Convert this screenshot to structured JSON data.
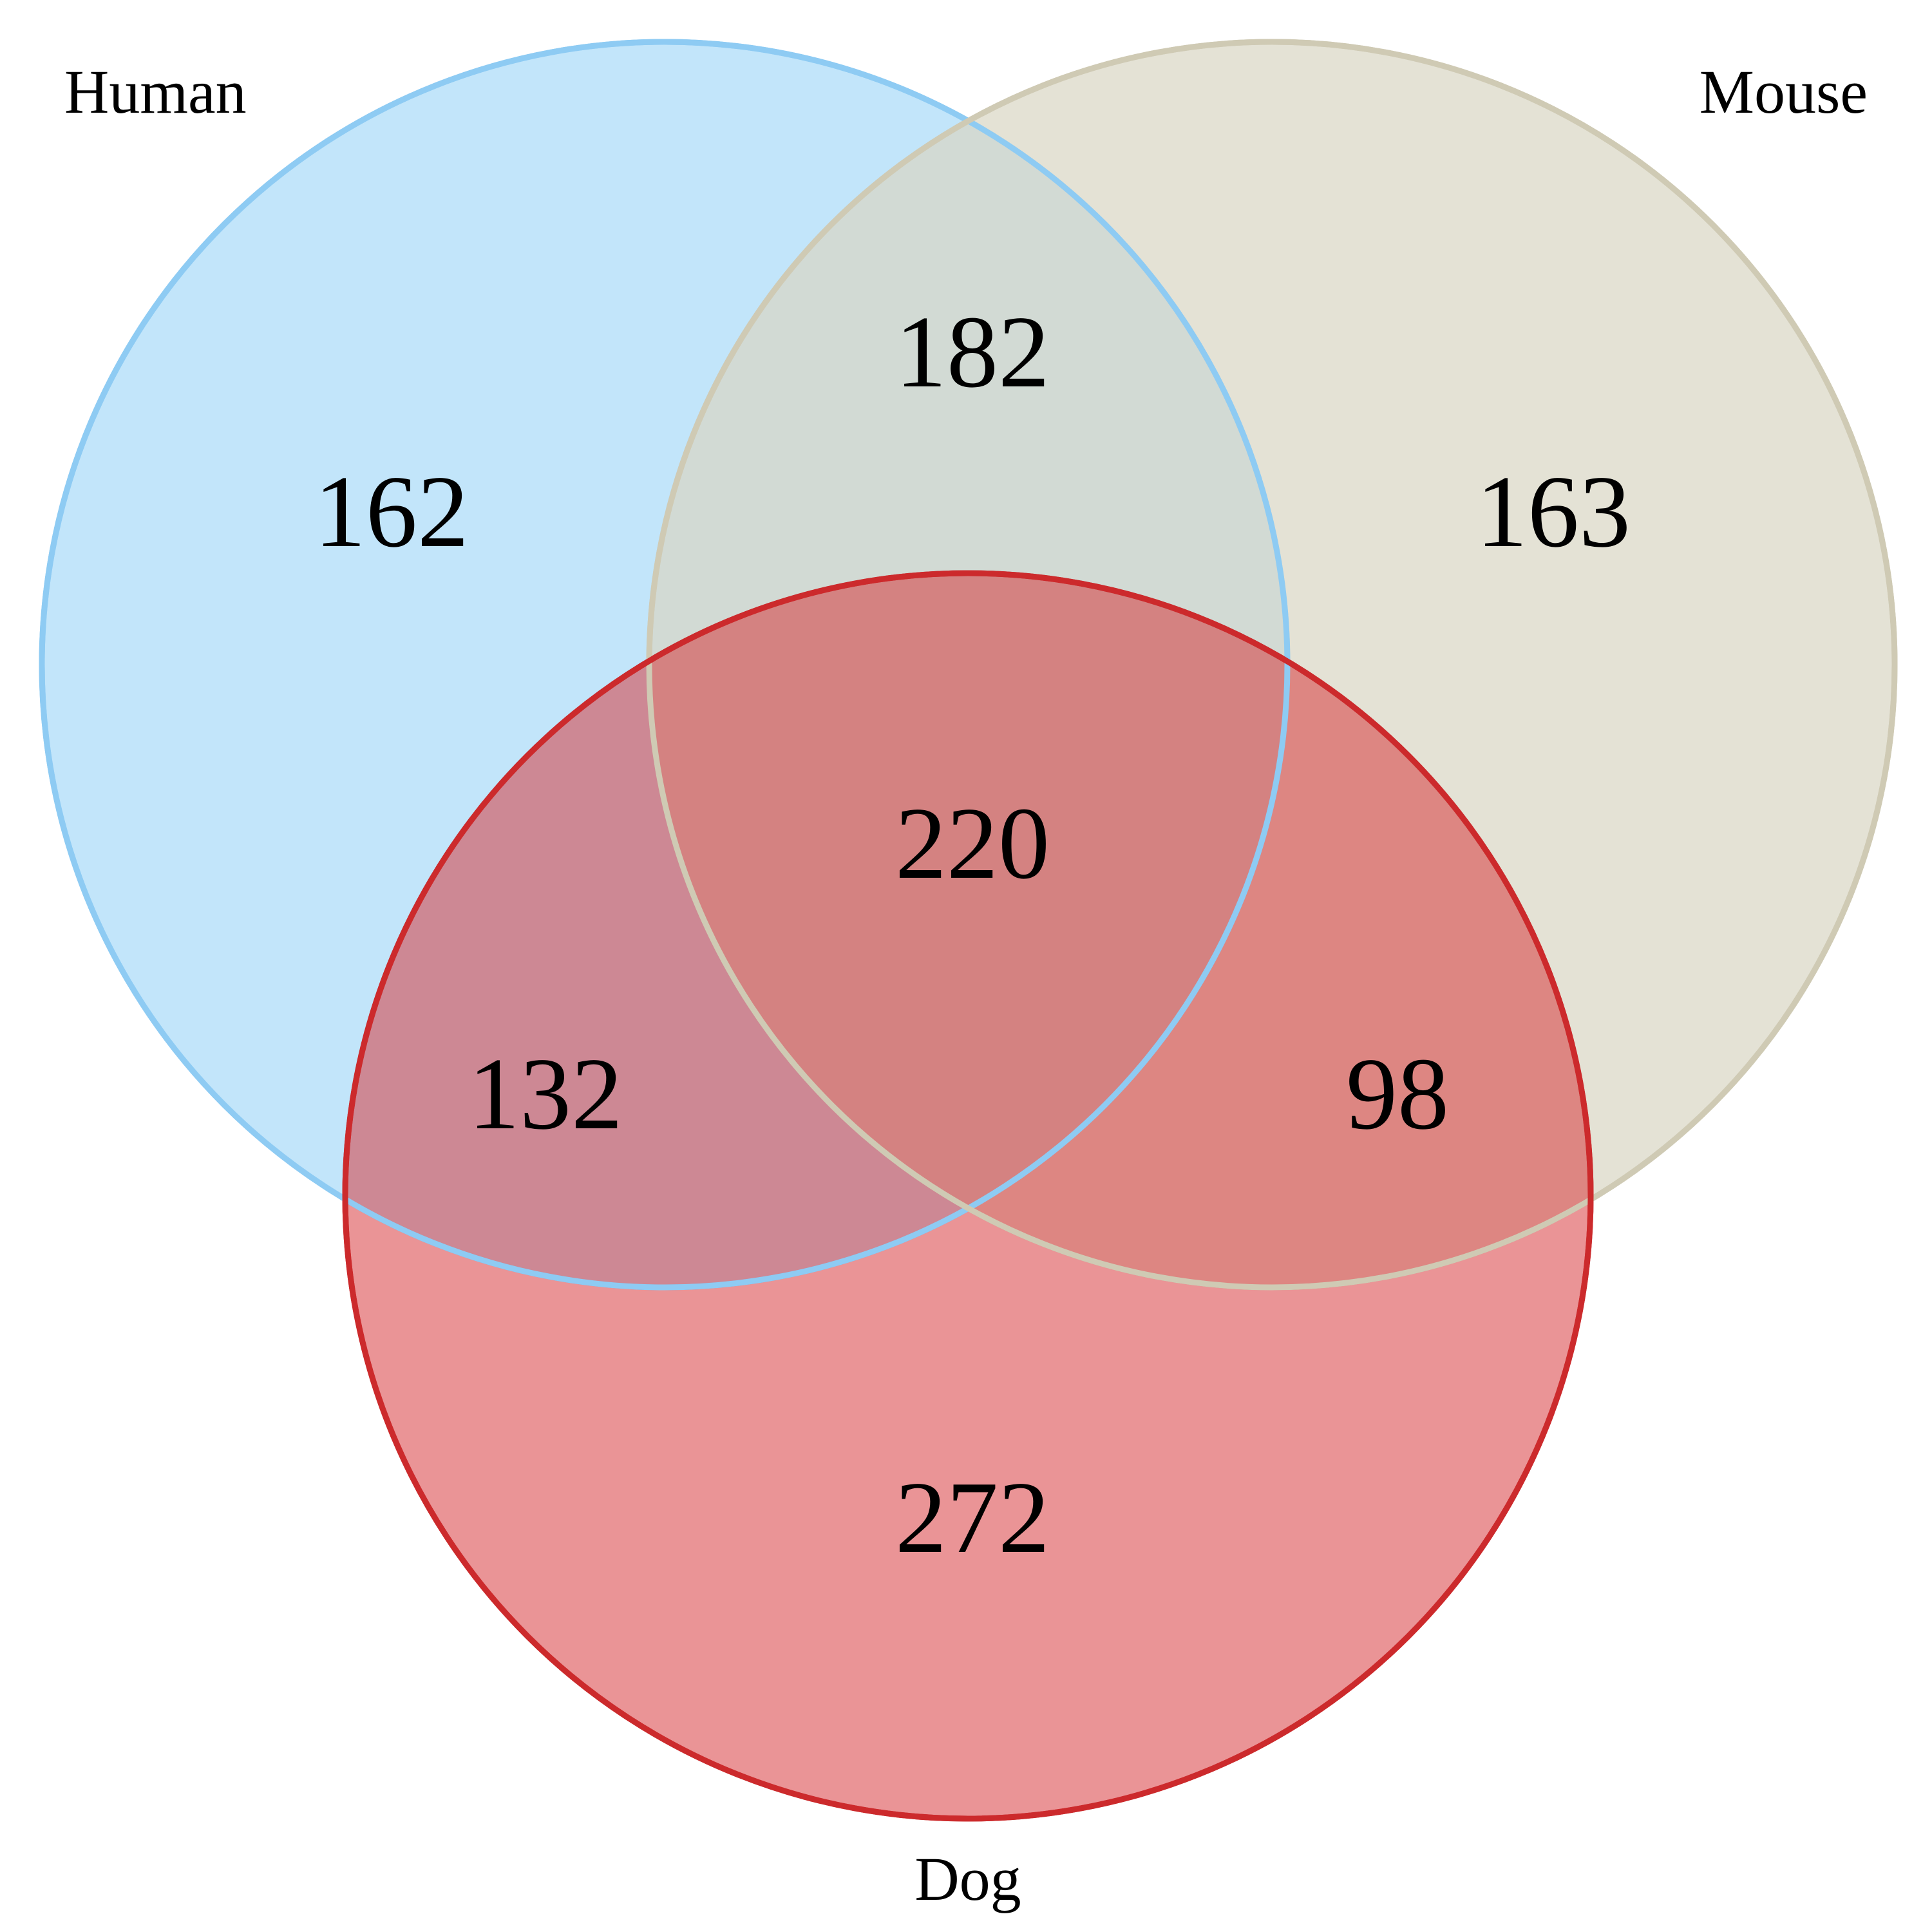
{
  "sets": [
    {
      "key": "human",
      "name": "Human",
      "fill": "#8fcff5",
      "stroke": "#8ecbf3"
    },
    {
      "key": "mouse",
      "name": "Mouse",
      "fill": "#d9d5c3",
      "stroke": "#cfcab4"
    },
    {
      "key": "dog",
      "name": "Dog",
      "fill": "#d63236",
      "stroke": "#cc2a2c"
    }
  ],
  "regions": {
    "human_only": "162",
    "human_mouse": "182",
    "mouse_only": "163",
    "human_mouse_dog": "220",
    "human_dog": "132",
    "mouse_dog": "98",
    "dog_only": "272"
  }
}
